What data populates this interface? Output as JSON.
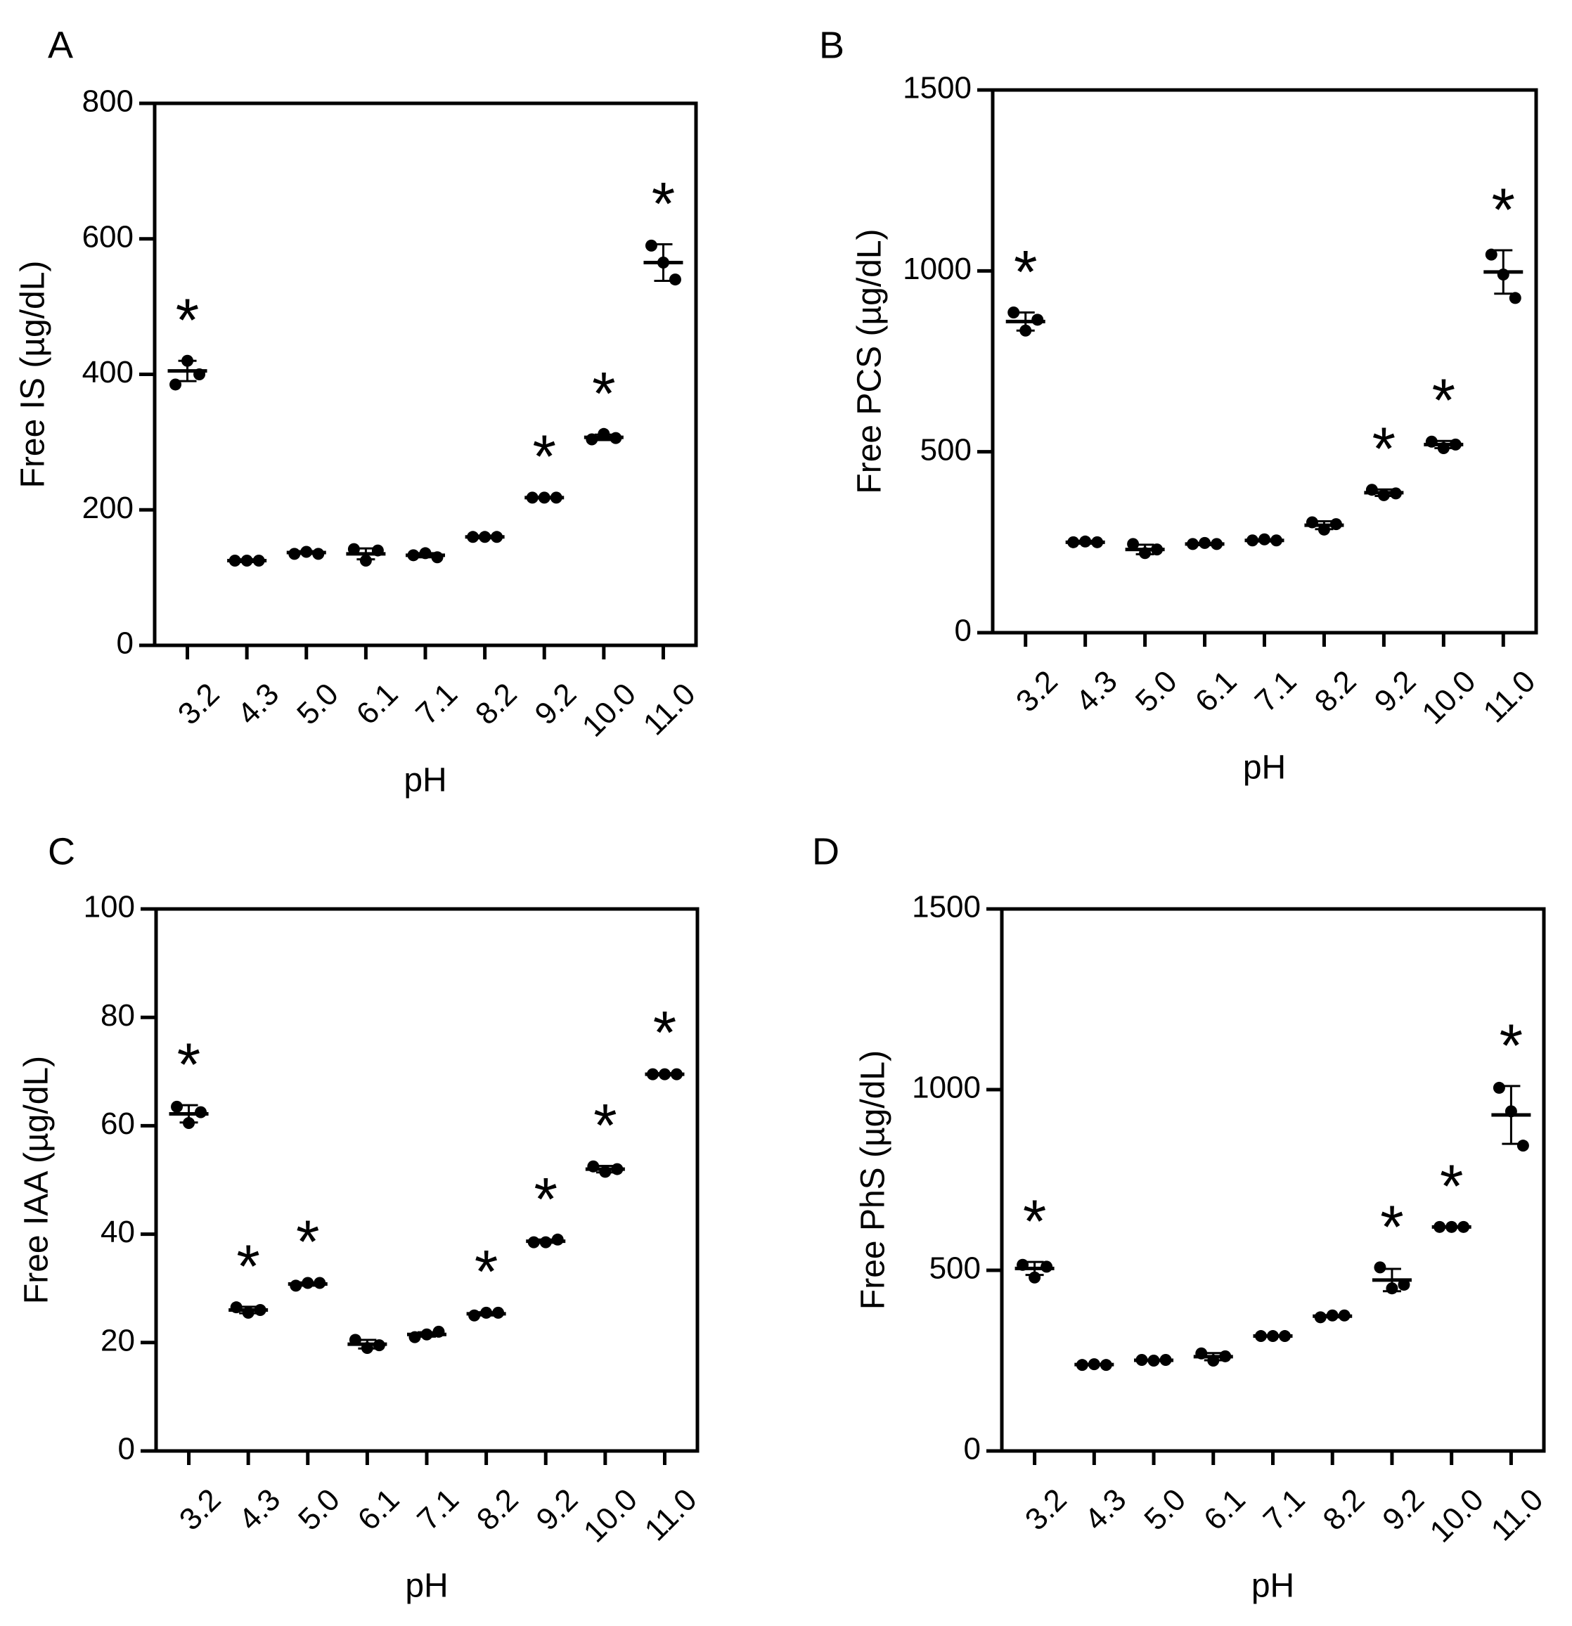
{
  "chart_data": [
    {
      "type": "scatter",
      "panel_label": "A",
      "xlabel": "pH",
      "ylabel": "Free IS (µg/dL)",
      "categories": [
        "3.2",
        "4.3",
        "5.0",
        "6.1",
        "7.1",
        "8.2",
        "9.2",
        "10.0",
        "11.0"
      ],
      "yticks": [
        "0",
        "200",
        "400",
        "600",
        "800"
      ],
      "ylim": [
        0,
        800
      ],
      "points": [
        [
          385,
          420,
          400
        ],
        [
          125,
          125,
          125
        ],
        [
          135,
          138,
          135
        ],
        [
          142,
          125,
          140
        ],
        [
          133,
          136,
          130
        ],
        [
          160,
          160,
          160
        ],
        [
          218,
          218,
          218
        ],
        [
          304,
          312,
          306
        ],
        [
          590,
          565,
          540
        ]
      ],
      "mean": [
        405,
        125,
        137,
        135,
        133,
        160,
        218,
        307,
        565
      ],
      "sd": [
        15,
        2,
        2,
        8,
        3,
        2,
        1,
        4,
        27
      ],
      "significant": [
        "*",
        "",
        "",
        "",
        "",
        "",
        "*",
        "*",
        "*"
      ]
    },
    {
      "type": "scatter",
      "panel_label": "B",
      "xlabel": "pH",
      "ylabel": "Free PCS (µg/dL)",
      "categories": [
        "3.2",
        "4.3",
        "5.0",
        "6.1",
        "7.1",
        "8.2",
        "9.2",
        "10.0",
        "11.0"
      ],
      "yticks": [
        "0",
        "500",
        "1000",
        "1500"
      ],
      "ylim": [
        0,
        1500
      ],
      "points": [
        [
          885,
          835,
          865
        ],
        [
          250,
          252,
          250
        ],
        [
          245,
          220,
          230
        ],
        [
          245,
          248,
          245
        ],
        [
          255,
          258,
          255
        ],
        [
          305,
          285,
          300
        ],
        [
          395,
          380,
          385
        ],
        [
          528,
          510,
          520
        ],
        [
          1045,
          990,
          925
        ]
      ],
      "mean": [
        860,
        250,
        230,
        245,
        255,
        297,
        387,
        520,
        997
      ],
      "sd": [
        25,
        4,
        13,
        3,
        3,
        11,
        9,
        10,
        60
      ],
      "significant": [
        "*",
        "",
        "",
        "",
        "",
        "",
        "*",
        "*",
        "*"
      ]
    },
    {
      "type": "scatter",
      "panel_label": "C",
      "xlabel": "pH",
      "ylabel": "Free IAA (µg/dL)",
      "categories": [
        "3.2",
        "4.3",
        "5.0",
        "6.1",
        "7.1",
        "8.2",
        "9.2",
        "10.0",
        "11.0"
      ],
      "yticks": [
        "0",
        "20",
        "40",
        "60",
        "80",
        "100"
      ],
      "ylim": [
        0,
        100
      ],
      "points": [
        [
          63.5,
          60.5,
          62.5
        ],
        [
          26.5,
          25.5,
          26
        ],
        [
          30.5,
          31,
          31
        ],
        [
          20.5,
          19,
          19.5
        ],
        [
          21,
          21.5,
          22
        ],
        [
          25,
          25.5,
          25.5
        ],
        [
          38.5,
          38.5,
          39
        ],
        [
          52.5,
          51.5,
          52
        ],
        [
          69.5,
          69.5,
          69.5
        ]
      ],
      "mean": [
        62.2,
        26,
        30.8,
        19.7,
        21.5,
        25.3,
        38.7,
        52,
        69.5
      ],
      "sd": [
        1.6,
        0.6,
        0.3,
        0.8,
        0.4,
        0.3,
        0.3,
        0.6,
        0.2
      ],
      "significant": [
        "*",
        "*",
        "*",
        "",
        "",
        "*",
        "*",
        "*",
        "*"
      ]
    },
    {
      "type": "scatter",
      "panel_label": "D",
      "xlabel": "pH",
      "ylabel": "Free PhS (µg/dL)",
      "categories": [
        "3.2",
        "4.3",
        "5.0",
        "6.1",
        "7.1",
        "8.2",
        "9.2",
        "10.0",
        "11.0"
      ],
      "yticks": [
        "0",
        "500",
        "1000",
        "1500"
      ],
      "ylim": [
        0,
        1500
      ],
      "points": [
        [
          515,
          480,
          510
        ],
        [
          238,
          240,
          238
        ],
        [
          252,
          250,
          252
        ],
        [
          270,
          250,
          262
        ],
        [
          318,
          318,
          318
        ],
        [
          370,
          375,
          375
        ],
        [
          508,
          450,
          460
        ],
        [
          620,
          620,
          620
        ],
        [
          1005,
          940,
          845
        ]
      ],
      "mean": [
        505,
        239,
        251,
        261,
        318,
        373,
        473,
        620,
        930
      ],
      "sd": [
        18,
        2,
        2,
        10,
        1,
        3,
        31,
        1,
        80
      ],
      "significant": [
        "*",
        "",
        "",
        "",
        "",
        "",
        "*",
        "*",
        "*"
      ]
    }
  ]
}
